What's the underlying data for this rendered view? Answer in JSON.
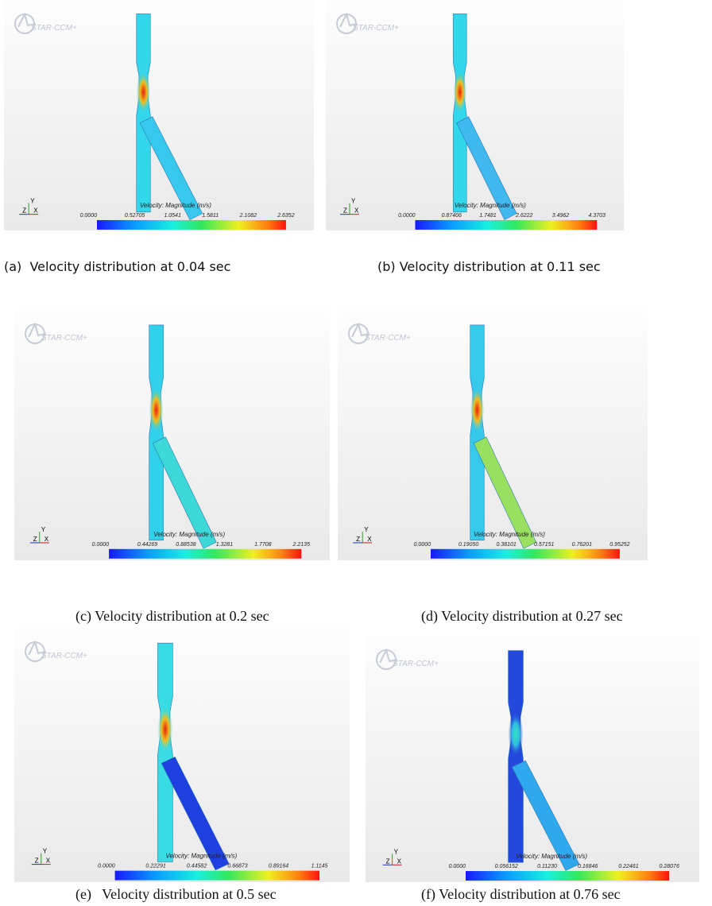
{
  "panels": [
    {
      "logo": "STAR-CCM+",
      "legend_title": "Velocity: Magnitude (m/s)",
      "ticks": [
        "0.0000",
        "0.52705",
        "1.0541",
        "1.5811",
        "2.1082",
        "2.6352"
      ],
      "axes": [
        "Y",
        "Z",
        "X"
      ],
      "caption": "(a)  Velocity distribution at 0.04 sec"
    },
    {
      "logo": "STAR-CCM+",
      "legend_title": "Velocity: Magnitude (m/s)",
      "ticks": [
        "0.0000",
        "0.87406",
        "1.7481",
        "2.6222",
        "3.4962",
        "4.3703"
      ],
      "axes": [
        "Y",
        "Z",
        "X"
      ],
      "caption": "(b) Velocity distribution at 0.11 sec"
    },
    {
      "logo": "STAR-CCM+",
      "legend_title": "Velocity: Magnitude (m/s)",
      "ticks": [
        "0.0000",
        "0.44269",
        "0.88538",
        "1.3281",
        "1.7708",
        "2.2135"
      ],
      "axes": [
        "Y",
        "Z",
        "X"
      ],
      "caption": "(c) Velocity distribution at 0.2 sec"
    },
    {
      "logo": "STAR-CCM+",
      "legend_title": "Velocity: Magnitude (m/s)",
      "ticks": [
        "0.0000",
        "0.19050",
        "0.38101",
        "0.57151",
        "0.76201",
        "0.95252"
      ],
      "axes": [
        "Y",
        "Z",
        "X"
      ],
      "caption": "(d) Velocity distribution at 0.27 sec"
    },
    {
      "logo": "STAR-CCM+",
      "legend_title": "Velocity: Magnitude (m/s)",
      "ticks": [
        "0.0000",
        "0.22291",
        "0.44582",
        "0.66873",
        "0.89164",
        "1.1145"
      ],
      "axes": [
        "Y",
        "Z",
        "X"
      ],
      "caption": "(e)   Velocity distribution at 0.5 sec"
    },
    {
      "logo": "STAR-CCM+",
      "legend_title": "Velocity: Magnitude (m/s)",
      "ticks": [
        "0.0000",
        "0.056152",
        "0.11230",
        "0.16846",
        "0.22461",
        "0.28076"
      ],
      "axes": [
        "Y",
        "Z",
        "X"
      ],
      "caption": "(f) Velocity distribution at 0.76 sec"
    }
  ]
}
